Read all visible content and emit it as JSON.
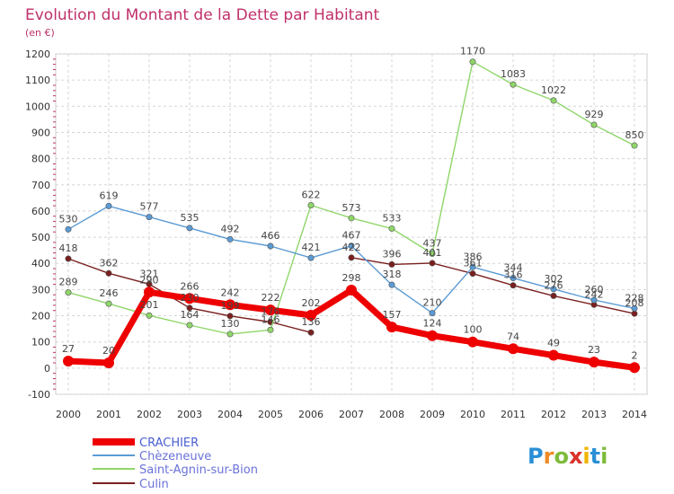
{
  "title": "Evolution du Montant de la Dette par Habitant",
  "subtitle": "(en €)",
  "logo": {
    "text": "Proxiti",
    "letter_colors": [
      "#2a8fd6",
      "#f08a24",
      "#7dbb3a",
      "#d9322b",
      "#f0b400",
      "#2a8fd6",
      "#7dbb3a"
    ]
  },
  "chart_data": {
    "type": "line",
    "title": "Evolution du Montant de la Dette par Habitant",
    "ylabel": "(en €)",
    "x": [
      "2000",
      "2001",
      "2002",
      "2003",
      "2004",
      "2005",
      "2006",
      "2007",
      "2008",
      "2009",
      "2010",
      "2011",
      "2012",
      "2013",
      "2014"
    ],
    "ylim": [
      -100,
      1200
    ],
    "yticks": [
      "-100",
      "0",
      "100",
      "200",
      "300",
      "400",
      "500",
      "600",
      "700",
      "800",
      "900",
      "1000",
      "1100",
      "1200"
    ],
    "grid": true,
    "legend_position": "bottom-left",
    "series": [
      {
        "name": "CRACHIER",
        "color": "#ee0000",
        "values": [
          27,
          20,
          290,
          266,
          242,
          222,
          202,
          298,
          157,
          124,
          100,
          74,
          49,
          23,
          2
        ],
        "labels": [
          "27",
          "20",
          "290",
          "266",
          "242",
          "222",
          "202",
          "298",
          "157",
          "124",
          "100",
          "74",
          "49",
          "23",
          "2"
        ]
      },
      {
        "name": "Chèzeneuve",
        "color": "#5b9bd5",
        "values": [
          530,
          619,
          577,
          535,
          492,
          466,
          421,
          467,
          318,
          210,
          386,
          344,
          302,
          260,
          228
        ],
        "labels": [
          "530",
          "619",
          "577",
          "535",
          "492",
          "466",
          "421",
          "467",
          "318",
          "210",
          "386",
          "344",
          "302",
          "260",
          "228"
        ]
      },
      {
        "name": "Saint-Agnin-sur-Bion",
        "color": "#8fd66a",
        "values": [
          289,
          246,
          201,
          164,
          130,
          146,
          622,
          573,
          533,
          437,
          1170,
          1083,
          1022,
          929,
          850
        ],
        "labels": [
          "289",
          "246",
          "201",
          "164",
          "130",
          "146",
          "622",
          "573",
          "533",
          "437",
          "1170",
          "1083",
          "1022",
          "929",
          "850"
        ]
      },
      {
        "name": "Culin",
        "color": "#7a1f1f",
        "values": [
          418,
          362,
          321,
          230,
          199,
          176,
          136,
          422,
          396,
          401,
          361,
          316,
          276,
          242,
          208
        ],
        "labels": [
          "418",
          "362",
          "321",
          "230",
          "199",
          "176",
          "136",
          "422",
          "396",
          "401",
          "361",
          "316",
          "276",
          "242",
          "208"
        ],
        "breaks": [
          6
        ]
      }
    ]
  }
}
